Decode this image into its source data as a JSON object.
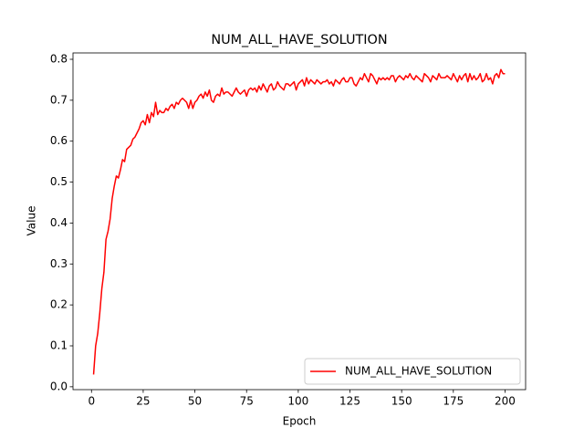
{
  "chart_data": {
    "type": "line",
    "title": "NUM_ALL_HAVE_SOLUTION",
    "x_label": "Epoch",
    "y_label": "Value",
    "x": [
      1,
      2,
      3,
      4,
      5,
      6,
      7,
      8,
      9,
      10,
      11,
      12,
      13,
      14,
      15,
      16,
      17,
      18,
      19,
      20,
      21,
      22,
      23,
      24,
      25,
      26,
      27,
      28,
      29,
      30,
      31,
      32,
      33,
      34,
      35,
      36,
      37,
      38,
      39,
      40,
      41,
      42,
      43,
      44,
      45,
      46,
      47,
      48,
      49,
      50,
      51,
      52,
      53,
      54,
      55,
      56,
      57,
      58,
      59,
      60,
      61,
      62,
      63,
      64,
      65,
      66,
      67,
      68,
      69,
      70,
      71,
      72,
      73,
      74,
      75,
      76,
      77,
      78,
      79,
      80,
      81,
      82,
      83,
      84,
      85,
      86,
      87,
      88,
      89,
      90,
      91,
      92,
      93,
      94,
      95,
      96,
      97,
      98,
      99,
      100,
      101,
      102,
      103,
      104,
      105,
      106,
      107,
      108,
      109,
      110,
      111,
      112,
      113,
      114,
      115,
      116,
      117,
      118,
      119,
      120,
      121,
      122,
      123,
      124,
      125,
      126,
      127,
      128,
      129,
      130,
      131,
      132,
      133,
      134,
      135,
      136,
      137,
      138,
      139,
      140,
      141,
      142,
      143,
      144,
      145,
      146,
      147,
      148,
      149,
      150,
      151,
      152,
      153,
      154,
      155,
      156,
      157,
      158,
      159,
      160,
      161,
      162,
      163,
      164,
      165,
      166,
      167,
      168,
      169,
      170,
      171,
      172,
      173,
      174,
      175,
      176,
      177,
      178,
      179,
      180,
      181,
      182,
      183,
      184,
      185,
      186,
      187,
      188,
      189,
      190,
      191,
      192,
      193,
      194,
      195,
      196,
      197,
      198,
      199,
      200
    ],
    "series": [
      {
        "name": "NUM_ALL_HAVE_SOLUTION",
        "color": "#ff0000",
        "values": [
          0.03,
          0.1,
          0.13,
          0.18,
          0.24,
          0.28,
          0.36,
          0.38,
          0.41,
          0.46,
          0.49,
          0.515,
          0.51,
          0.53,
          0.555,
          0.55,
          0.58,
          0.585,
          0.59,
          0.605,
          0.61,
          0.62,
          0.63,
          0.645,
          0.65,
          0.64,
          0.665,
          0.645,
          0.67,
          0.66,
          0.695,
          0.665,
          0.675,
          0.67,
          0.67,
          0.68,
          0.675,
          0.685,
          0.69,
          0.68,
          0.695,
          0.69,
          0.7,
          0.705,
          0.7,
          0.695,
          0.68,
          0.7,
          0.68,
          0.695,
          0.7,
          0.71,
          0.715,
          0.705,
          0.72,
          0.71,
          0.725,
          0.7,
          0.695,
          0.71,
          0.715,
          0.71,
          0.73,
          0.715,
          0.72,
          0.72,
          0.715,
          0.71,
          0.72,
          0.73,
          0.72,
          0.715,
          0.72,
          0.725,
          0.71,
          0.725,
          0.73,
          0.725,
          0.73,
          0.72,
          0.735,
          0.725,
          0.74,
          0.73,
          0.72,
          0.735,
          0.74,
          0.725,
          0.73,
          0.745,
          0.735,
          0.73,
          0.725,
          0.74,
          0.74,
          0.735,
          0.74,
          0.745,
          0.725,
          0.74,
          0.745,
          0.75,
          0.735,
          0.755,
          0.74,
          0.75,
          0.745,
          0.74,
          0.75,
          0.745,
          0.74,
          0.745,
          0.745,
          0.75,
          0.74,
          0.745,
          0.735,
          0.75,
          0.745,
          0.74,
          0.75,
          0.755,
          0.745,
          0.745,
          0.755,
          0.755,
          0.74,
          0.735,
          0.745,
          0.755,
          0.75,
          0.765,
          0.755,
          0.745,
          0.765,
          0.76,
          0.75,
          0.74,
          0.755,
          0.75,
          0.755,
          0.75,
          0.755,
          0.75,
          0.76,
          0.76,
          0.745,
          0.755,
          0.76,
          0.755,
          0.75,
          0.76,
          0.755,
          0.765,
          0.755,
          0.75,
          0.76,
          0.755,
          0.75,
          0.745,
          0.765,
          0.76,
          0.755,
          0.745,
          0.76,
          0.755,
          0.75,
          0.765,
          0.755,
          0.755,
          0.755,
          0.76,
          0.755,
          0.75,
          0.765,
          0.755,
          0.745,
          0.76,
          0.75,
          0.76,
          0.765,
          0.745,
          0.765,
          0.75,
          0.76,
          0.75,
          0.755,
          0.765,
          0.745,
          0.75,
          0.765,
          0.75,
          0.755,
          0.74,
          0.76,
          0.765,
          0.755,
          0.775,
          0.765,
          0.765
        ]
      }
    ],
    "xlim": [
      -8.95,
      209.95
    ],
    "xticks": [
      0,
      25,
      50,
      75,
      100,
      125,
      150,
      175,
      200
    ],
    "ylim": [
      -0.007,
      0.8156
    ],
    "yticks": [
      {
        "value": 0,
        "label": "0.0"
      },
      0.1,
      0.2,
      0.3,
      0.4,
      0.5,
      0.6,
      0.7,
      0.8
    ],
    "legend": "lower right"
  }
}
